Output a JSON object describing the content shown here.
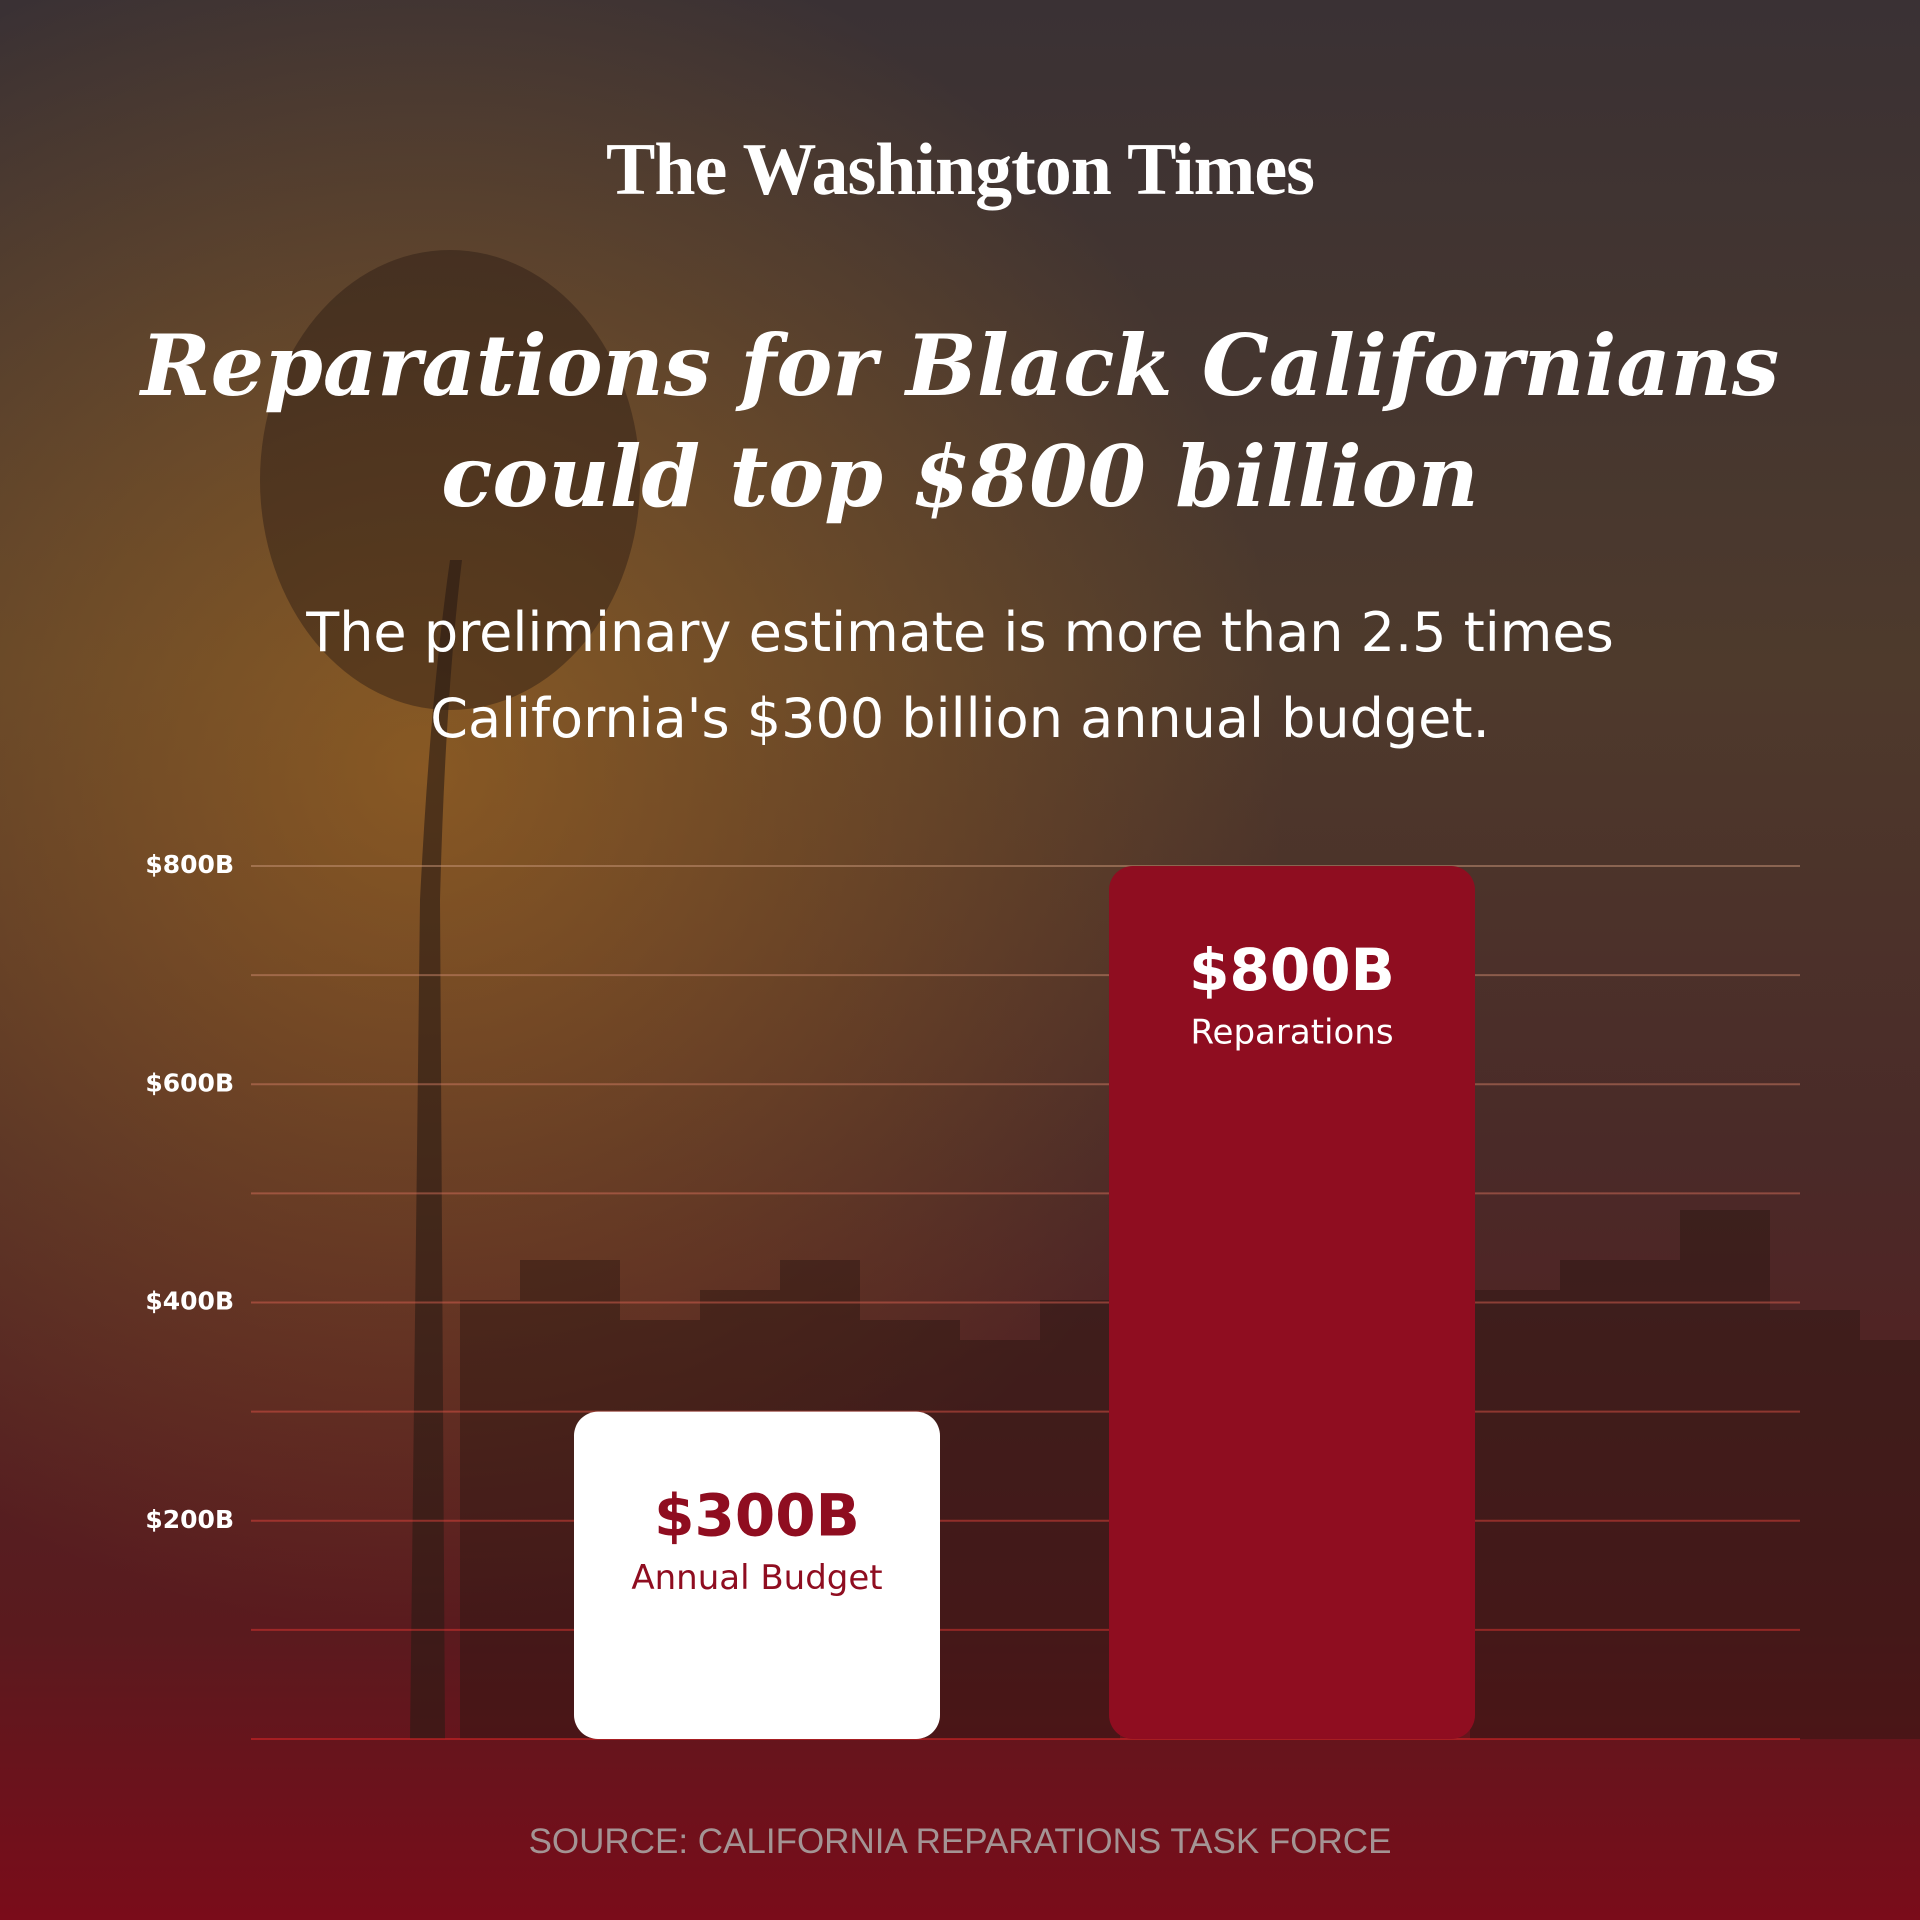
{
  "brand": "The Washington Times",
  "chart_data": {
    "type": "bar",
    "title": "Reparations for Black Californians could top $800 billion",
    "subtitle": "The preliminary estimate is more than 2.5 times California's $300 billion annual budget.",
    "source": "SOURCE: CALIFORNIA REPARATIONS TASK FORCE",
    "categories": [
      "Annual Budget",
      "Reparations"
    ],
    "values": [
      300,
      800
    ],
    "value_labels": [
      "$300B",
      "$800B"
    ],
    "colors": [
      "#ffffff",
      "#8f0d20"
    ],
    "ylim": [
      0,
      800
    ],
    "yticks": [
      {
        "value": 0,
        "label": null
      },
      {
        "value": 100,
        "label": null
      },
      {
        "value": 200,
        "label": "$200B"
      },
      {
        "value": 300,
        "label": null
      },
      {
        "value": 400,
        "label": "$400B"
      },
      {
        "value": 500,
        "label": null
      },
      {
        "value": 600,
        "label": "$600B"
      },
      {
        "value": 700,
        "label": null
      },
      {
        "value": 800,
        "label": "$800B"
      }
    ],
    "grid": true
  }
}
